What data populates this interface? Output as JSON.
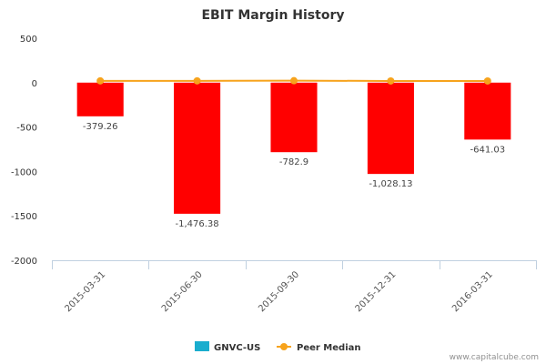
{
  "chart_data": {
    "type": "bar",
    "title": "EBIT Margin History",
    "categories": [
      "2015-03-31",
      "2015-06-30",
      "2015-09-30",
      "2015-12-31",
      "2016-03-31"
    ],
    "series": [
      {
        "name": "GNVC-US",
        "type": "bar",
        "color": "#ff0000",
        "legend_color": "#1aadce",
        "values": [
          -379.26,
          -1476.38,
          -782.9,
          -1028.13,
          -641.03
        ],
        "labels": [
          "-379.26",
          "-1,476.38",
          "-782.9",
          "-1,028.13",
          "-641.03"
        ]
      },
      {
        "name": "Peer Median",
        "type": "line",
        "color": "#f7a31c",
        "values": [
          20,
          20,
          22,
          19,
          19
        ]
      }
    ],
    "ylim": [
      -2000,
      500
    ],
    "yticks": [
      500,
      0,
      -500,
      -1000,
      -1500,
      -2000
    ],
    "ytick_labels": [
      "500",
      "0",
      "-500",
      "-1000",
      "-1500",
      "-2000"
    ],
    "grid": false,
    "legend": "bottom-center"
  },
  "credit": "www.capitalcube.com"
}
